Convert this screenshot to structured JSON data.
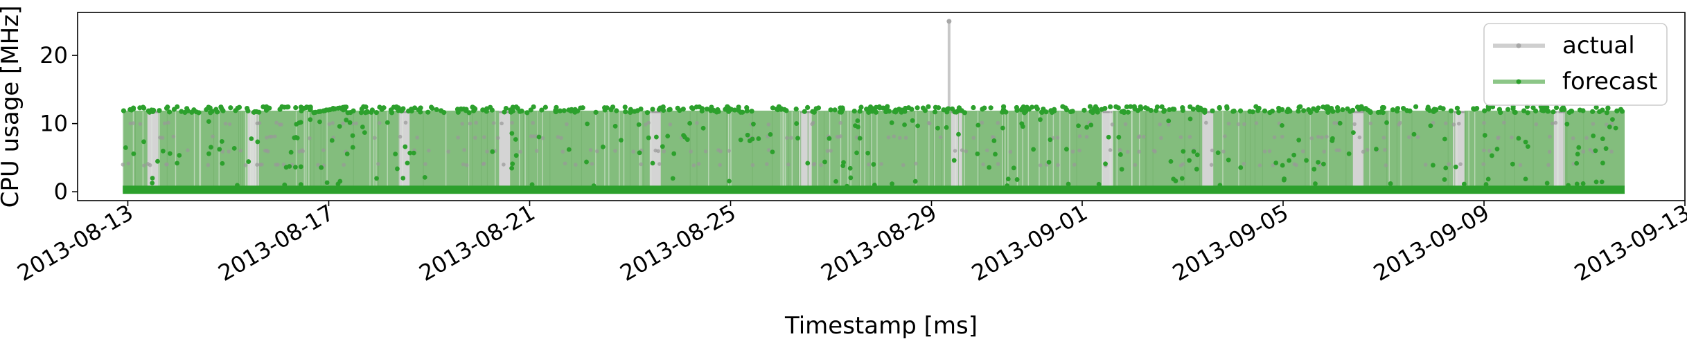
{
  "chart_data": {
    "type": "line",
    "xlabel": "Timestamp [ms]",
    "ylabel": "CPU usage [MHz]",
    "x_range": [
      "2013-08-12",
      "2013-09-13"
    ],
    "ylim": [
      -1.3,
      26.3
    ],
    "x_tick_labels": [
      "2013-08-13",
      "2013-08-17",
      "2013-08-21",
      "2013-08-25",
      "2013-08-29",
      "2013-09-01",
      "2013-09-05",
      "2013-09-09",
      "2013-09-13"
    ],
    "y_ticks": [
      0,
      10,
      20
    ],
    "grid": false,
    "legend": {
      "placement": "top-right",
      "entries": [
        "actual",
        "forecast"
      ]
    },
    "x_start": "2013-08-12",
    "x_end": "2013-09-11",
    "series": [
      {
        "name": "actual",
        "color": "#b0b0b0",
        "typical_range": [
          0,
          11.7
        ],
        "intermediate_levels": [
          4,
          6,
          8,
          10
        ],
        "peak": {
          "x": "2013-08-29",
          "y": 25
        }
      },
      {
        "name": "forecast",
        "color": "#2ca02c",
        "typical_range": [
          0,
          12.3
        ],
        "intermediate_levels": [
          1.5,
          4,
          6,
          8,
          10
        ]
      }
    ],
    "gaps": [
      "2013-08-13",
      "2013-08-15",
      "2013-08-18",
      "2013-08-20",
      "2013-08-23",
      "2013-08-26",
      "2013-08-29",
      "2013-09-01",
      "2013-09-03",
      "2013-09-06",
      "2013-09-08",
      "2013-09-10"
    ]
  }
}
